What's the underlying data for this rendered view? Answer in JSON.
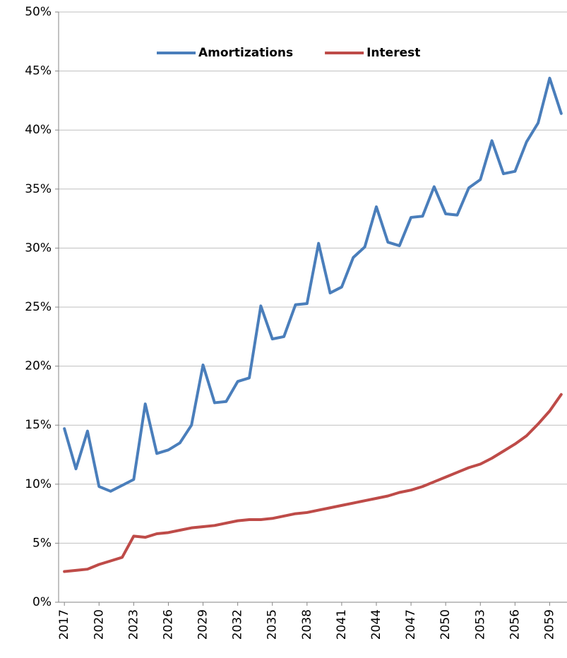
{
  "chart_data": {
    "type": "line",
    "x": [
      2017,
      2018,
      2019,
      2020,
      2021,
      2022,
      2023,
      2024,
      2025,
      2026,
      2027,
      2028,
      2029,
      2030,
      2031,
      2032,
      2033,
      2034,
      2035,
      2036,
      2037,
      2038,
      2039,
      2040,
      2041,
      2042,
      2043,
      2044,
      2045,
      2046,
      2047,
      2048,
      2049,
      2050,
      2051,
      2052,
      2053,
      2054,
      2055,
      2056,
      2057,
      2058,
      2059,
      2060
    ],
    "series": [
      {
        "name": "Amortizations",
        "color": "#4a7ebb",
        "values": [
          14.7,
          11.3,
          14.5,
          9.8,
          9.4,
          9.9,
          10.4,
          16.8,
          12.6,
          12.9,
          13.5,
          15.0,
          20.1,
          16.9,
          17.0,
          18.7,
          19.0,
          25.1,
          22.3,
          22.5,
          25.2,
          25.3,
          30.4,
          26.2,
          26.7,
          29.2,
          30.1,
          33.5,
          30.5,
          30.2,
          32.6,
          32.7,
          35.2,
          32.9,
          32.8,
          35.1,
          35.8,
          39.1,
          36.3,
          36.5,
          39.0,
          40.6,
          44.4,
          41.4
        ]
      },
      {
        "name": "Interest",
        "color": "#be4b48",
        "values": [
          2.6,
          2.7,
          2.8,
          3.2,
          3.5,
          3.8,
          5.6,
          5.5,
          5.8,
          5.9,
          6.1,
          6.3,
          6.4,
          6.5,
          6.7,
          6.9,
          7.0,
          7.0,
          7.1,
          7.3,
          7.5,
          7.6,
          7.8,
          8.0,
          8.2,
          8.4,
          8.6,
          8.8,
          9.0,
          9.3,
          9.5,
          9.8,
          10.2,
          10.6,
          11.0,
          11.4,
          11.7,
          12.2,
          12.8,
          13.4,
          14.1,
          15.1,
          16.2,
          17.6
        ]
      }
    ],
    "xlim": [
      2016.5,
      2060.5
    ],
    "xticks": [
      2017,
      2020,
      2023,
      2026,
      2029,
      2032,
      2035,
      2038,
      2041,
      2044,
      2047,
      2050,
      2053,
      2056,
      2059
    ],
    "ylim": [
      0,
      50
    ],
    "yticks": [
      {
        "value": 0,
        "label": "0%"
      },
      {
        "value": 5,
        "label": "5%"
      },
      {
        "value": 10,
        "label": "10%"
      },
      {
        "value": 15,
        "label": "15%"
      },
      {
        "value": 20,
        "label": "20%"
      },
      {
        "value": 25,
        "label": "25%"
      },
      {
        "value": 30,
        "label": "30%"
      },
      {
        "value": 35,
        "label": "35%"
      },
      {
        "value": 40,
        "label": "40%"
      },
      {
        "value": 45,
        "label": "45%"
      },
      {
        "value": 50,
        "label": "50%"
      }
    ],
    "grid": true,
    "legend": "top"
  }
}
